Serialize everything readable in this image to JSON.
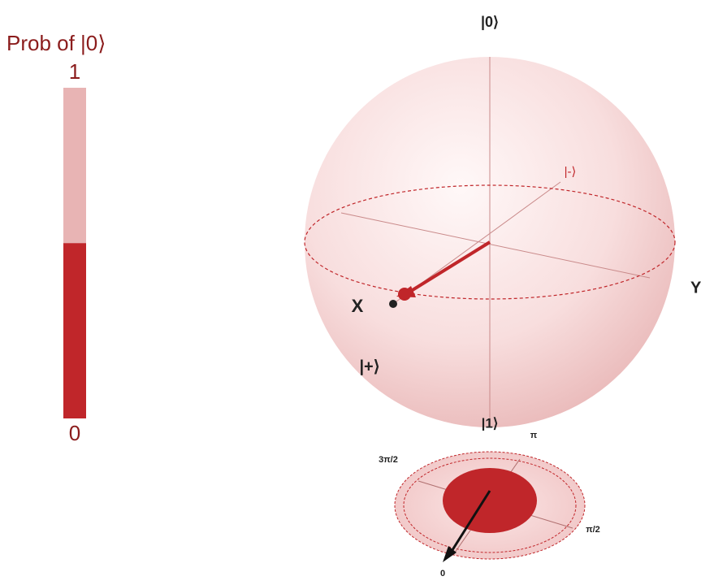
{
  "probability_bar": {
    "title": "Prob of |0⟩",
    "ticks": [
      0,
      1
    ],
    "value": 0.53,
    "color": "#c0262a",
    "track_color": "#e8b4b4"
  },
  "sphere": {
    "labels": {
      "zero": "|0⟩",
      "one": "|1⟩",
      "minus": "|-⟩",
      "plus": "|+⟩",
      "x": "X",
      "y": "Y"
    }
  },
  "phase_disc": {
    "labels": [
      "0",
      "π/2",
      "π",
      "3π/2"
    ]
  }
}
